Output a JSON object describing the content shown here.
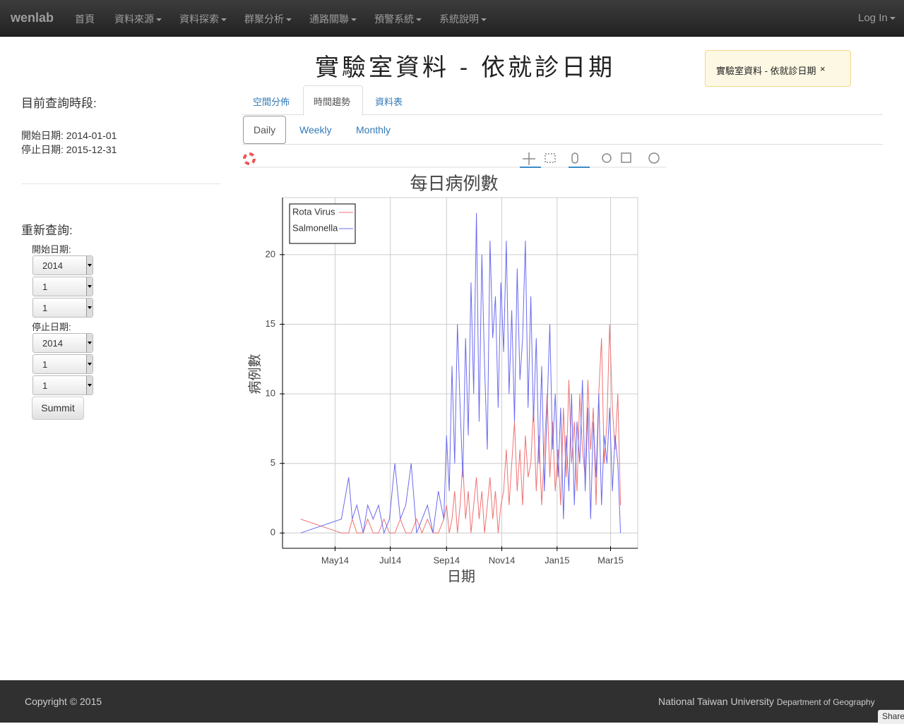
{
  "nav": {
    "brand": "wenlab",
    "items": [
      "首頁",
      "資料來源",
      "資料探索",
      "群聚分析",
      "通路關聯",
      "預警系統",
      "系統說明"
    ],
    "login": "Log In"
  },
  "heading": "實驗室資料 - 依就診日期",
  "alert": {
    "text": "實驗室資料 - 依就診日期",
    "close": "×"
  },
  "sidebar": {
    "query_title": "目前查詢時段:",
    "start_label": "開始日期:",
    "start_value": "2014-01-01",
    "stop_label": "停止日期:",
    "stop_value": "2015-12-31",
    "requery_title": "重新查詢:",
    "form_start_label": "開始日期:",
    "start_selects": [
      "2014",
      "1",
      "1"
    ],
    "form_stop_label": "停止日期:",
    "stop_selects": [
      "2014",
      "1",
      "1"
    ],
    "submit": "Summit"
  },
  "tabs": [
    "空間分佈",
    "時間趨勢",
    "資料表"
  ],
  "subtabs": [
    "Daily",
    "Weekly",
    "Monthly"
  ],
  "chart_data": {
    "type": "line",
    "title": "每日病例數",
    "x_label": "日期",
    "y_label": "病例數",
    "x": [
      "2014-03-24",
      "2014-05-08",
      "2014-05-16",
      "2014-05-20",
      "2014-05-25",
      "2014-06-01",
      "2014-06-06",
      "2014-06-12",
      "2014-06-18",
      "2014-06-24",
      "2014-06-30",
      "2014-07-06",
      "2014-07-12",
      "2014-07-18",
      "2014-07-24",
      "2014-07-30",
      "2014-08-05",
      "2014-08-11",
      "2014-08-17",
      "2014-08-23",
      "2014-08-29",
      "2014-09-01",
      "2014-09-04",
      "2014-09-07",
      "2014-09-10",
      "2014-09-13",
      "2014-09-16",
      "2014-09-19",
      "2014-09-22",
      "2014-09-25",
      "2014-09-28",
      "2014-10-01",
      "2014-10-04",
      "2014-10-07",
      "2014-10-10",
      "2014-10-13",
      "2014-10-16",
      "2014-10-19",
      "2014-10-22",
      "2014-10-25",
      "2014-10-28",
      "2014-10-31",
      "2014-11-03",
      "2014-11-06",
      "2014-11-09",
      "2014-11-12",
      "2014-11-15",
      "2014-11-18",
      "2014-11-21",
      "2014-11-24",
      "2014-11-27",
      "2014-11-30",
      "2014-12-03",
      "2014-12-06",
      "2014-12-09",
      "2014-12-12",
      "2014-12-15",
      "2014-12-18",
      "2014-12-21",
      "2014-12-24",
      "2014-12-27",
      "2014-12-30",
      "2015-01-02",
      "2015-01-05",
      "2015-01-08",
      "2015-01-11",
      "2015-01-14",
      "2015-01-17",
      "2015-01-20",
      "2015-01-23",
      "2015-01-26",
      "2015-01-29",
      "2015-02-01",
      "2015-02-04",
      "2015-02-07",
      "2015-02-10",
      "2015-02-13",
      "2015-02-16",
      "2015-02-19",
      "2015-02-22",
      "2015-02-25",
      "2015-02-28",
      "2015-03-03",
      "2015-03-06",
      "2015-03-09",
      "2015-03-12"
    ],
    "series": [
      {
        "name": "Rota Virus",
        "color": "#f07272",
        "values": [
          1,
          0,
          0,
          1,
          0,
          0,
          1,
          0,
          0,
          1,
          0,
          0,
          1,
          0,
          0,
          1,
          0,
          1,
          0,
          0,
          1,
          2,
          0,
          1,
          3,
          0,
          2,
          5,
          1,
          3,
          0,
          2,
          4,
          1,
          3,
          0,
          2,
          4,
          1,
          3,
          0,
          2,
          3,
          6,
          2,
          5,
          8,
          3,
          6,
          2,
          7,
          4,
          5,
          9,
          3,
          7,
          2,
          6,
          10,
          4,
          8,
          3,
          6,
          2,
          9,
          4,
          11,
          5,
          8,
          3,
          10,
          6,
          4,
          11,
          6,
          9,
          2,
          10,
          14,
          5,
          8,
          15,
          9,
          6,
          10,
          2
        ]
      },
      {
        "name": "Salmonella",
        "color": "#6b6bef",
        "values": [
          0,
          1,
          4,
          1,
          2,
          0,
          2,
          1,
          2,
          0,
          1,
          5,
          1,
          2,
          5,
          0,
          1,
          2,
          0,
          3,
          1,
          7,
          3,
          12,
          5,
          15,
          9,
          4,
          14,
          7,
          18,
          10,
          23,
          8,
          20,
          12,
          6,
          21,
          14,
          17,
          9,
          18,
          13,
          21,
          10,
          16,
          8,
          19,
          11,
          14,
          21,
          9,
          17,
          8,
          14,
          5,
          12,
          3,
          9,
          15,
          6,
          10,
          4,
          9,
          1,
          7,
          3,
          10,
          2,
          8,
          5,
          11,
          3,
          9,
          1,
          8,
          4,
          10,
          2,
          7,
          5,
          9,
          3,
          7,
          5,
          0
        ]
      }
    ],
    "xlim": [
      "2014-03-04",
      "2015-03-31"
    ],
    "xticks": [
      {
        "value": "2014-05-01",
        "label": "May14"
      },
      {
        "value": "2014-07-01",
        "label": "Jul14"
      },
      {
        "value": "2014-09-01",
        "label": "Sep14"
      },
      {
        "value": "2014-11-01",
        "label": "Nov14"
      },
      {
        "value": "2015-01-01",
        "label": "Jan15"
      },
      {
        "value": "2015-03-01",
        "label": "Mar15"
      }
    ],
    "ylim": [
      -1.1,
      24.1
    ],
    "yticks": [
      0,
      5,
      10,
      15,
      20
    ],
    "grid": true,
    "legend": "top-left"
  },
  "footer": {
    "copyright": "Copyright © 2015",
    "org": "National Taiwan University",
    "dept": "Department of Geography",
    "share": "Share"
  }
}
